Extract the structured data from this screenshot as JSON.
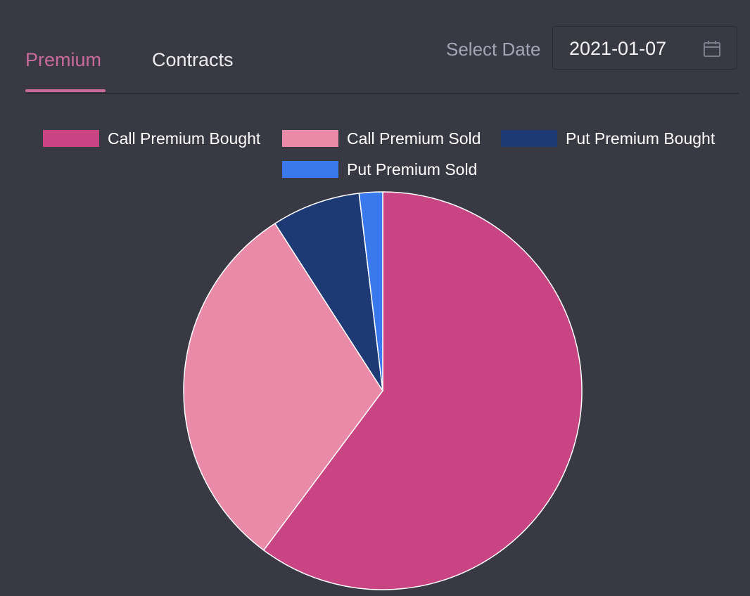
{
  "tabs": [
    {
      "label": "Premium",
      "active": true
    },
    {
      "label": "Contracts",
      "active": false
    }
  ],
  "date_picker": {
    "label": "Select Date",
    "value": "2021-01-07",
    "icon": "calendar-icon"
  },
  "colors": {
    "background": "#393944",
    "accent": "#c86a9a"
  },
  "chart_data": {
    "type": "pie",
    "title": "",
    "legend_position": "top",
    "series": [
      {
        "name": "Call Premium Bought",
        "value": 60.2,
        "color": "#c84482"
      },
      {
        "name": "Call Premium Sold",
        "value": 30.7,
        "color": "#e98aa9"
      },
      {
        "name": "Put Premium Bought",
        "value": 7.2,
        "color": "#1d3a74"
      },
      {
        "name": "Put Premium Sold",
        "value": 1.9,
        "color": "#3a78ee"
      }
    ]
  }
}
